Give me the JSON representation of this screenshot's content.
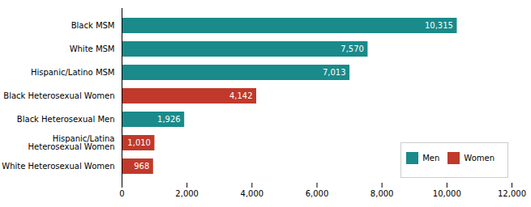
{
  "chart_data": {
    "type": "bar",
    "orientation": "horizontal",
    "categories": [
      "White Heterosexual Women",
      "Hispanic/Latina\nHeterosexual Women",
      "Black Heterosexual Men",
      "Black Heterosexual Women",
      "Hispanic/Latino MSM",
      "White MSM",
      "Black MSM"
    ],
    "series": [
      {
        "name": "Men",
        "color": "#1a8a8a",
        "values": [
          null,
          null,
          1926,
          null,
          7013,
          7570,
          10315
        ],
        "value_labels": [
          null,
          null,
          "1,926",
          null,
          "7,013",
          "7,570",
          "10,315"
        ]
      },
      {
        "name": "Women",
        "color": "#c0392b",
        "values": [
          968,
          1010,
          null,
          4142,
          null,
          null,
          null
        ],
        "value_labels": [
          "968",
          "1,010",
          null,
          "4,142",
          null,
          null,
          null
        ]
      }
    ],
    "xlim": [
      0,
      12000
    ],
    "xticks": [
      0,
      {
        "value": 2000,
        "label": "2,000"
      },
      {
        "value": 4000,
        "label": "4,000"
      },
      {
        "value": 6000,
        "label": "6,000"
      },
      {
        "value": 8000,
        "label": "8,000"
      },
      {
        "value": 10000,
        "label": "10,000"
      },
      {
        "value": 12000,
        "label": "12,000"
      }
    ],
    "data_labels": true,
    "legend": "lower right"
  }
}
